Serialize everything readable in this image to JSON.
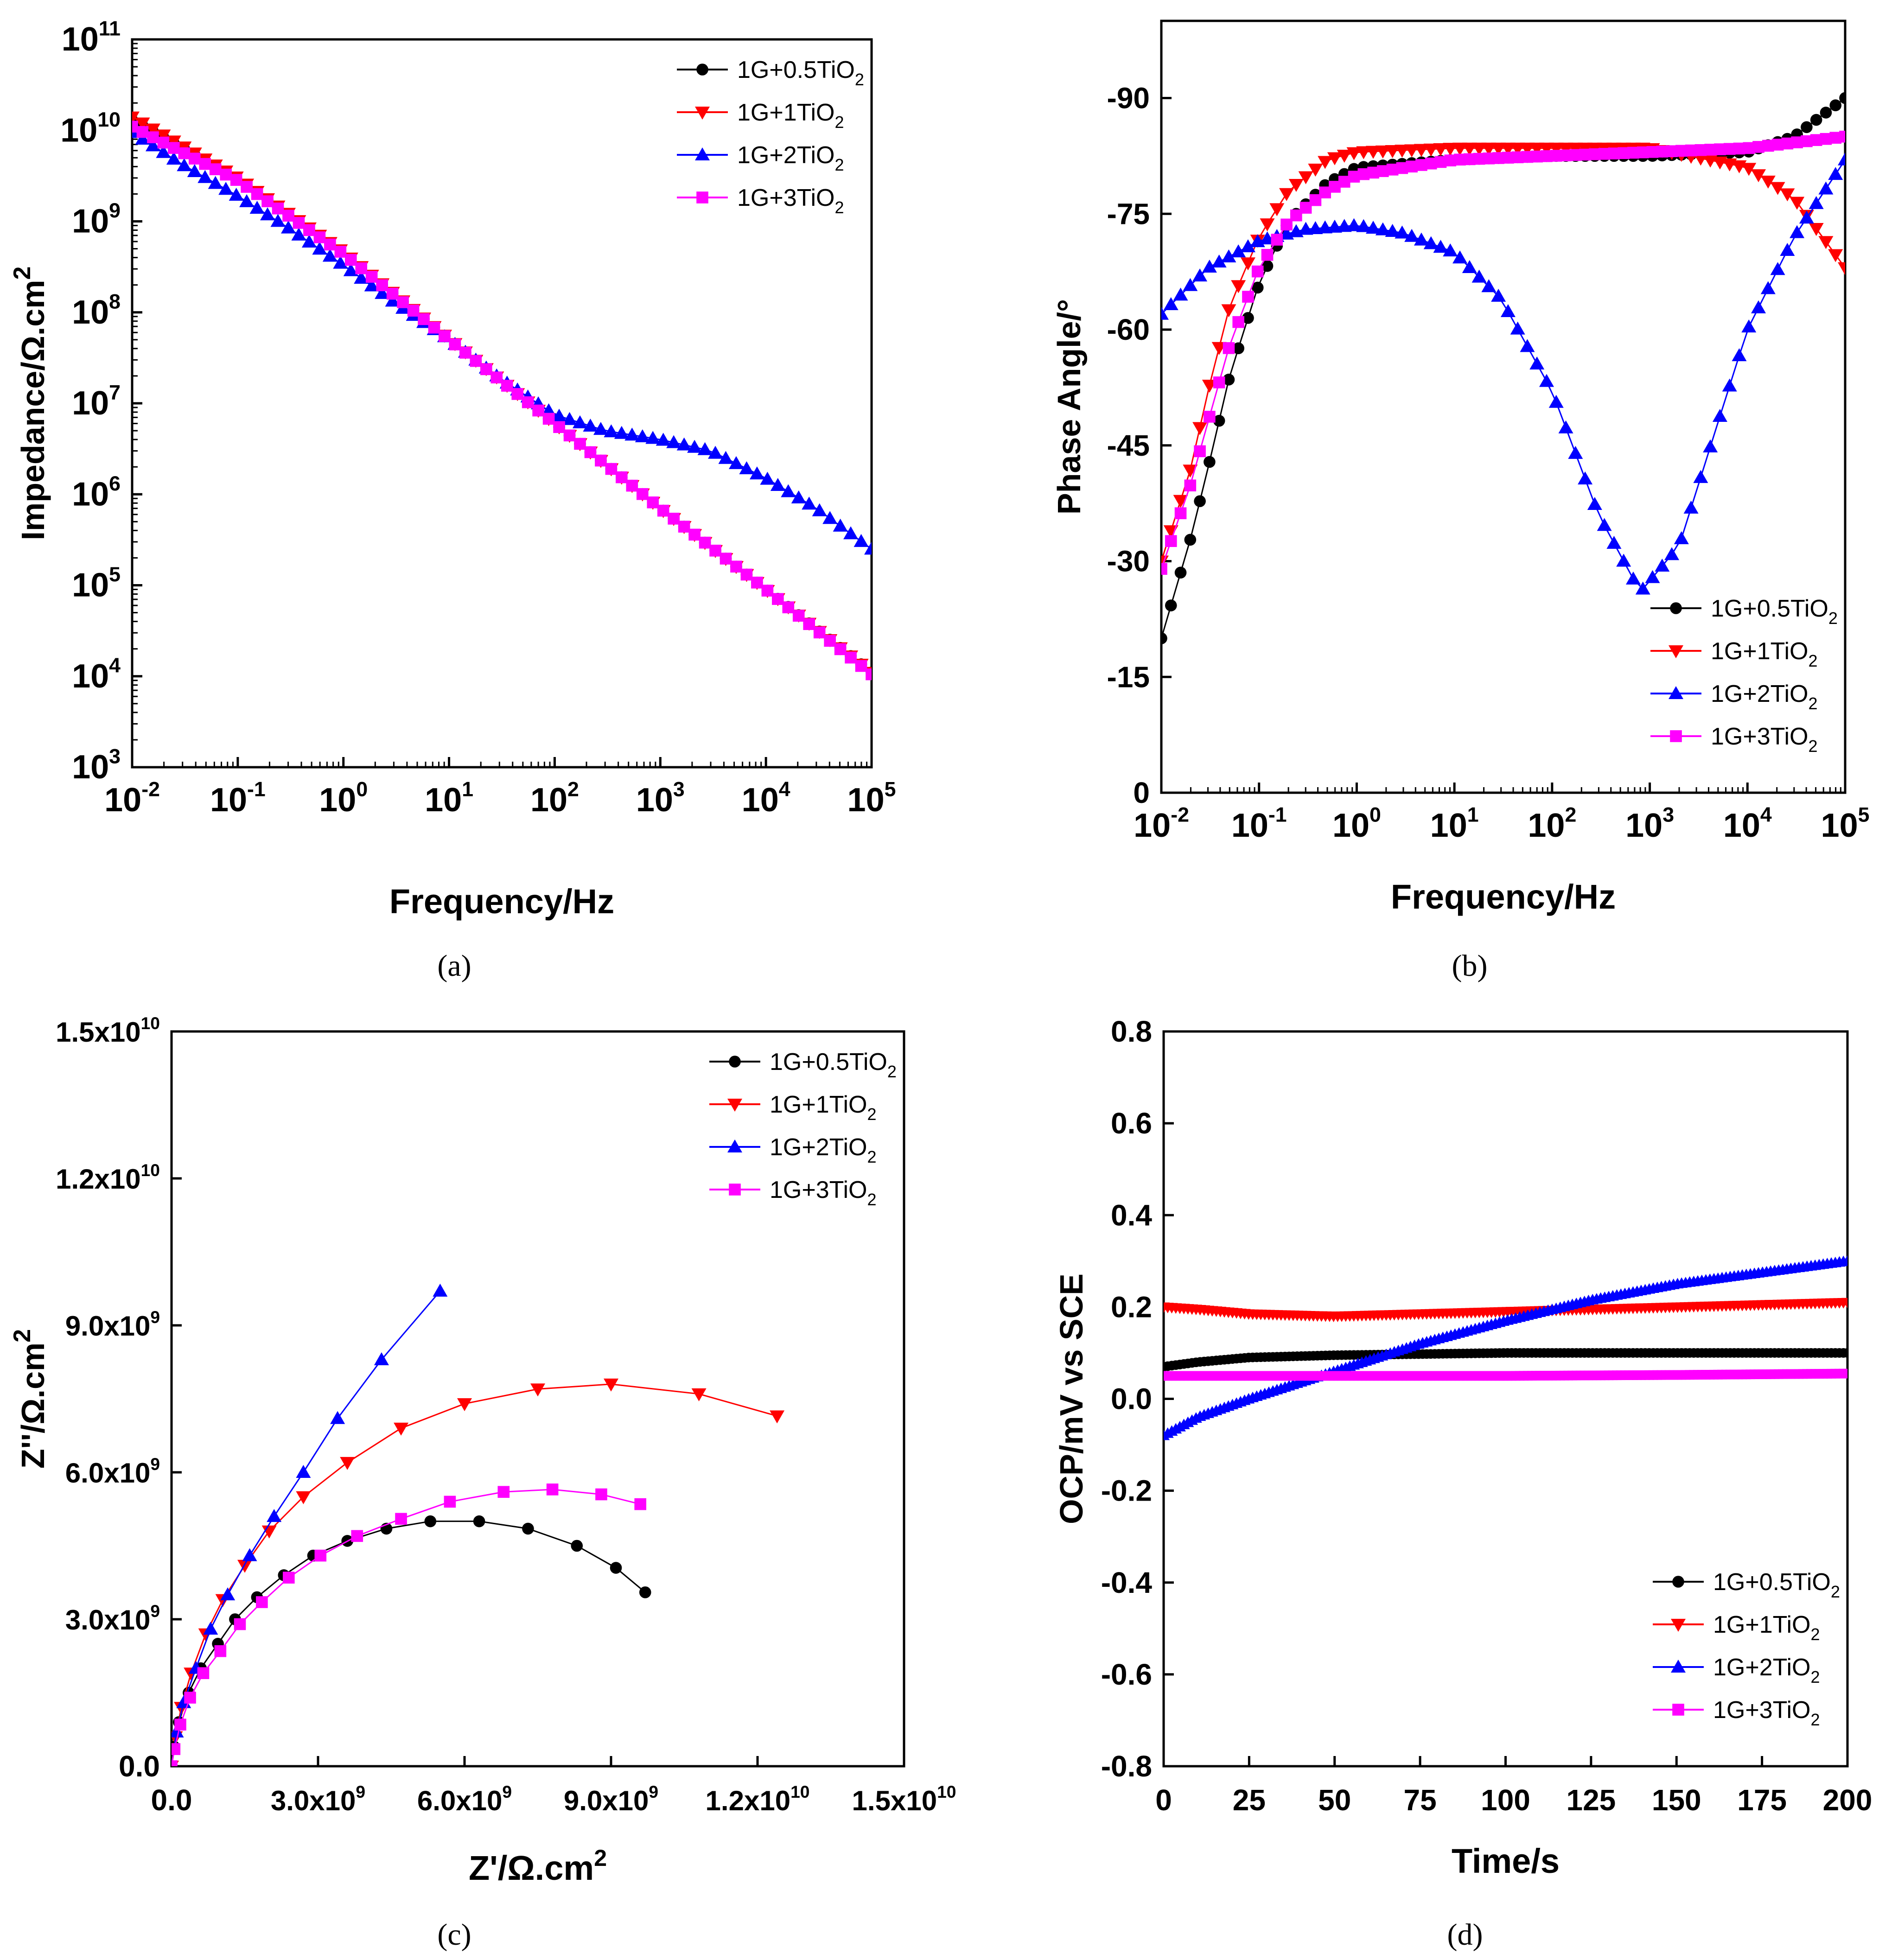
{
  "colors": {
    "s05": "#000000",
    "s1": "#ff0000",
    "s2": "#0000ff",
    "s3": "#ff00ff"
  },
  "chart_data": [
    {
      "id": "a",
      "panel_label": "(a)",
      "type": "scatter",
      "title": "",
      "xlabel": "Frequency/Hz",
      "ylabel": "Impedance/Ω.cm",
      "ylabel_sup": "2",
      "x_scale": "log",
      "y_scale": "log",
      "xlim": [
        0.01,
        100000
      ],
      "ylim": [
        1000,
        100000000000
      ],
      "x_ticks": [
        {
          "v": 0.01,
          "b": "10",
          "e": "-2"
        },
        {
          "v": 0.1,
          "b": "10",
          "e": "-1"
        },
        {
          "v": 1,
          "b": "10",
          "e": "0"
        },
        {
          "v": 10,
          "b": "10",
          "e": "1"
        },
        {
          "v": 100,
          "b": "10",
          "e": "2"
        },
        {
          "v": 1000,
          "b": "10",
          "e": "3"
        },
        {
          "v": 10000,
          "b": "10",
          "e": "4"
        },
        {
          "v": 100000,
          "b": "10",
          "e": "5"
        }
      ],
      "y_ticks": [
        {
          "v": 1000,
          "b": "10",
          "e": "3"
        },
        {
          "v": 10000,
          "b": "10",
          "e": "4"
        },
        {
          "v": 100000,
          "b": "10",
          "e": "5"
        },
        {
          "v": 1000000,
          "b": "10",
          "e": "6"
        },
        {
          "v": 10000000,
          "b": "10",
          "e": "7"
        },
        {
          "v": 100000000,
          "b": "10",
          "e": "8"
        },
        {
          "v": 1000000000,
          "b": "10",
          "e": "9"
        },
        {
          "v": 10000000000,
          "b": "10",
          "e": "10"
        },
        {
          "v": 100000000000,
          "b": "10",
          "e": "11"
        }
      ],
      "legend_position": "top-right",
      "series": [
        {
          "key": "s05",
          "name": "1G+0.5TiO",
          "sub": "2",
          "marker": "circle",
          "x": [
            0.01,
            0.1,
            1,
            10,
            100,
            1000,
            10000,
            100000
          ],
          "y": [
            13000000000,
            2900000000,
            450000000,
            50000000,
            6000000,
            700000,
            90000,
            11000
          ]
        },
        {
          "key": "s1",
          "name": "1G+1TiO",
          "sub": "2",
          "marker": "tri-down",
          "x": [
            0.01,
            0.1,
            1,
            10,
            100,
            1000,
            10000,
            100000
          ],
          "y": [
            14000000000,
            3000000000,
            460000000,
            51000000,
            6000000,
            700000,
            90000,
            11000
          ]
        },
        {
          "key": "s2",
          "name": "1G+2TiO",
          "sub": "2",
          "marker": "tri-up",
          "x": [
            0.01,
            0.03,
            0.1,
            0.3,
            1,
            3,
            10,
            30,
            100,
            300,
            1000,
            3000,
            10000,
            30000,
            100000
          ],
          "y": [
            9500000000,
            4200000000,
            1900000000,
            850000000,
            330000000,
            130000000,
            50000000,
            19000000,
            7500000,
            5000000,
            4000000,
            3000000,
            1500000,
            700000,
            250000
          ]
        },
        {
          "key": "s3",
          "name": "1G+3TiO",
          "sub": "2",
          "marker": "square",
          "x": [
            0.01,
            0.1,
            1,
            10,
            100,
            1000,
            10000,
            100000
          ],
          "y": [
            11000000000,
            2800000000,
            440000000,
            50000000,
            6000000,
            700000,
            90000,
            10500
          ]
        }
      ]
    },
    {
      "id": "b",
      "panel_label": "(b)",
      "type": "scatter",
      "title": "",
      "xlabel": "Frequency/Hz",
      "ylabel": "Phase Angle/°",
      "x_scale": "log",
      "y_scale": "linear",
      "y_reversed": true,
      "xlim": [
        0.01,
        100000
      ],
      "ylim": [
        0,
        -100
      ],
      "x_ticks": [
        {
          "v": 0.01,
          "b": "10",
          "e": "-2"
        },
        {
          "v": 0.1,
          "b": "10",
          "e": "-1"
        },
        {
          "v": 1,
          "b": "10",
          "e": "0"
        },
        {
          "v": 10,
          "b": "10",
          "e": "1"
        },
        {
          "v": 100,
          "b": "10",
          "e": "2"
        },
        {
          "v": 1000,
          "b": "10",
          "e": "3"
        },
        {
          "v": 10000,
          "b": "10",
          "e": "4"
        },
        {
          "v": 100000,
          "b": "10",
          "e": "5"
        }
      ],
      "y_ticks": [
        {
          "v": 0,
          "t": "0"
        },
        {
          "v": -15,
          "t": "-15"
        },
        {
          "v": -30,
          "t": "-30"
        },
        {
          "v": -45,
          "t": "-45"
        },
        {
          "v": -60,
          "t": "-60"
        },
        {
          "v": -75,
          "t": "-75"
        },
        {
          "v": -90,
          "t": "-90"
        }
      ],
      "legend_position": "bottom-right",
      "series": [
        {
          "key": "s05",
          "name": "1G+0.5TiO",
          "sub": "2",
          "marker": "circle",
          "x": [
            0.01,
            0.02,
            0.03,
            0.05,
            0.1,
            0.2,
            0.5,
            1,
            10,
            100,
            1000,
            10000,
            30000,
            100000
          ],
          "y": [
            -20,
            -33,
            -42,
            -54,
            -66,
            -74,
            -79,
            -81,
            -82,
            -82.5,
            -82.5,
            -83,
            -85,
            -90
          ]
        },
        {
          "key": "s1",
          "name": "1G+1TiO",
          "sub": "2",
          "marker": "tri-down",
          "x": [
            0.01,
            0.02,
            0.03,
            0.05,
            0.1,
            0.2,
            0.5,
            1,
            10,
            100,
            1000,
            10000,
            30000,
            100000
          ],
          "y": [
            -30,
            -42,
            -52,
            -63,
            -72,
            -78,
            -82,
            -83,
            -83.5,
            -83.5,
            -83.5,
            -81,
            -77,
            -68
          ]
        },
        {
          "key": "s2",
          "name": "1G+2TiO",
          "sub": "2",
          "marker": "tri-up",
          "x": [
            0.01,
            0.03,
            0.1,
            0.3,
            1,
            3,
            10,
            30,
            100,
            300,
            800,
            2000,
            5000,
            10000,
            30000,
            100000
          ],
          "y": [
            -62,
            -68,
            -71.5,
            -73,
            -73.5,
            -72.5,
            -70,
            -64,
            -52,
            -36,
            -26,
            -32,
            -48,
            -60,
            -72,
            -82
          ]
        },
        {
          "key": "s3",
          "name": "1G+3TiO",
          "sub": "2",
          "marker": "square",
          "x": [
            0.01,
            0.02,
            0.03,
            0.05,
            0.1,
            0.2,
            0.5,
            1,
            10,
            100,
            1000,
            10000,
            100000
          ],
          "y": [
            -29,
            -40,
            -48,
            -58,
            -68,
            -74,
            -78,
            -80,
            -82,
            -82.5,
            -83,
            -83.5,
            -85
          ]
        }
      ]
    },
    {
      "id": "c",
      "panel_label": "(c)",
      "type": "scatter",
      "title": "",
      "xlabel": "Z'/Ω.cm",
      "xlabel_sup": "2",
      "ylabel": "Z''/Ω.cm",
      "ylabel_sup": "2",
      "x_scale": "linear",
      "y_scale": "linear",
      "xlim": [
        0,
        15000000000
      ],
      "ylim": [
        0,
        15000000000
      ],
      "x_ticks": [
        {
          "v": 0,
          "t": "0.0"
        },
        {
          "v": 3000000000,
          "m": "3.0x10",
          "e": "9"
        },
        {
          "v": 6000000000,
          "m": "6.0x10",
          "e": "9"
        },
        {
          "v": 9000000000,
          "m": "9.0x10",
          "e": "9"
        },
        {
          "v": 12000000000,
          "m": "1.2x10",
          "e": "10"
        },
        {
          "v": 15000000000,
          "m": "1.5x10",
          "e": "10"
        }
      ],
      "y_ticks": [
        {
          "v": 0,
          "t": "0.0"
        },
        {
          "v": 3000000000,
          "m": "3.0x10",
          "e": "9"
        },
        {
          "v": 6000000000,
          "m": "6.0x10",
          "e": "9"
        },
        {
          "v": 9000000000,
          "m": "9.0x10",
          "e": "9"
        },
        {
          "v": 12000000000,
          "m": "1.2x10",
          "e": "10"
        },
        {
          "v": 15000000000,
          "m": "1.5x10",
          "e": "10"
        }
      ],
      "legend_position": "top-right",
      "series": [
        {
          "key": "s05",
          "name": "1G+0.5TiO",
          "sub": "2",
          "marker": "circle",
          "x": [
            0,
            50000000,
            150000000,
            350000000,
            600000000,
            950000000,
            1300000000,
            1750000000,
            2300000000,
            2900000000,
            3600000000,
            4400000000,
            5300000000,
            6300000000,
            7300000000,
            8300000000,
            9100000000,
            9700000000
          ],
          "y": [
            0,
            400000000,
            900000000,
            1500000000,
            2000000000,
            2500000000,
            3000000000,
            3450000000,
            3900000000,
            4300000000,
            4600000000,
            4850000000,
            5000000000,
            5000000000,
            4850000000,
            4500000000,
            4050000000,
            3550000000
          ]
        },
        {
          "key": "s1",
          "name": "1G+1TiO",
          "sub": "2",
          "marker": "tri-down",
          "x": [
            0,
            80000000,
            200000000,
            400000000,
            700000000,
            1050000000,
            1500000000,
            2000000000,
            2700000000,
            3600000000,
            4700000000,
            6000000000,
            7500000000,
            9000000000,
            10800000000,
            12400000000
          ],
          "y": [
            0,
            600000000,
            1200000000,
            1900000000,
            2700000000,
            3400000000,
            4100000000,
            4800000000,
            5500000000,
            6200000000,
            6900000000,
            7400000000,
            7700000000,
            7800000000,
            7600000000,
            7150000000
          ]
        },
        {
          "key": "s2",
          "name": "1G+2TiO",
          "sub": "2",
          "marker": "tri-up",
          "x": [
            0,
            100000000,
            250000000,
            500000000,
            800000000,
            1150000000,
            1600000000,
            2100000000,
            2700000000,
            3400000000,
            4300000000,
            5500000000
          ],
          "y": [
            0,
            700000000,
            1300000000,
            2000000000,
            2800000000,
            3500000000,
            4300000000,
            5100000000,
            6000000000,
            7100000000,
            8300000000,
            9700000000
          ]
        },
        {
          "key": "s3",
          "name": "1G+3TiO",
          "sub": "2",
          "marker": "square",
          "x": [
            0,
            60000000,
            180000000,
            380000000,
            650000000,
            1000000000,
            1400000000,
            1850000000,
            2400000000,
            3050000000,
            3800000000,
            4700000000,
            5700000000,
            6800000000,
            7800000000,
            8800000000,
            9600000000
          ],
          "y": [
            0,
            350000000,
            850000000,
            1400000000,
            1900000000,
            2350000000,
            2900000000,
            3350000000,
            3850000000,
            4300000000,
            4700000000,
            5050000000,
            5400000000,
            5600000000,
            5650000000,
            5550000000,
            5350000000
          ]
        }
      ]
    },
    {
      "id": "d",
      "panel_label": "(d)",
      "type": "line",
      "title": "",
      "xlabel": "Time/s",
      "ylabel": "OCP/mV vs SCE",
      "x_scale": "linear",
      "y_scale": "linear",
      "xlim": [
        0,
        200
      ],
      "ylim": [
        -0.8,
        0.8
      ],
      "x_ticks": [
        {
          "v": 0,
          "t": "0"
        },
        {
          "v": 25,
          "t": "25"
        },
        {
          "v": 50,
          "t": "50"
        },
        {
          "v": 75,
          "t": "75"
        },
        {
          "v": 100,
          "t": "100"
        },
        {
          "v": 125,
          "t": "125"
        },
        {
          "v": 150,
          "t": "150"
        },
        {
          "v": 175,
          "t": "175"
        },
        {
          "v": 200,
          "t": "200"
        }
      ],
      "y_ticks": [
        {
          "v": -0.8,
          "t": "-0.8"
        },
        {
          "v": -0.6,
          "t": "-0.6"
        },
        {
          "v": -0.4,
          "t": "-0.4"
        },
        {
          "v": -0.2,
          "t": "-0.2"
        },
        {
          "v": 0.0,
          "t": "0.0"
        },
        {
          "v": 0.2,
          "t": "0.2"
        },
        {
          "v": 0.4,
          "t": "0.4"
        },
        {
          "v": 0.6,
          "t": "0.6"
        },
        {
          "v": 0.8,
          "t": "0.8"
        }
      ],
      "legend_position": "bottom-right",
      "series": [
        {
          "key": "s05",
          "name": "1G+0.5TiO",
          "sub": "2",
          "marker": "circle",
          "x": [
            0,
            10,
            25,
            50,
            100,
            150,
            200
          ],
          "y": [
            0.07,
            0.08,
            0.09,
            0.095,
            0.1,
            0.1,
            0.1
          ]
        },
        {
          "key": "s1",
          "name": "1G+1TiO",
          "sub": "2",
          "marker": "tri-down",
          "x": [
            0,
            10,
            25,
            50,
            75,
            100,
            125,
            150,
            175,
            200
          ],
          "y": [
            0.2,
            0.195,
            0.185,
            0.18,
            0.185,
            0.19,
            0.195,
            0.2,
            0.205,
            0.21
          ]
        },
        {
          "key": "s2",
          "name": "1G+2TiO",
          "sub": "2",
          "marker": "tri-up",
          "x": [
            0,
            10,
            25,
            50,
            75,
            100,
            125,
            150,
            175,
            200
          ],
          "y": [
            -0.08,
            -0.04,
            0.0,
            0.06,
            0.12,
            0.17,
            0.215,
            0.25,
            0.275,
            0.3
          ]
        },
        {
          "key": "s3",
          "name": "1G+3TiO",
          "sub": "2",
          "marker": "square",
          "x": [
            0,
            50,
            100,
            150,
            200
          ],
          "y": [
            0.05,
            0.05,
            0.05,
            0.052,
            0.055
          ]
        }
      ]
    }
  ]
}
